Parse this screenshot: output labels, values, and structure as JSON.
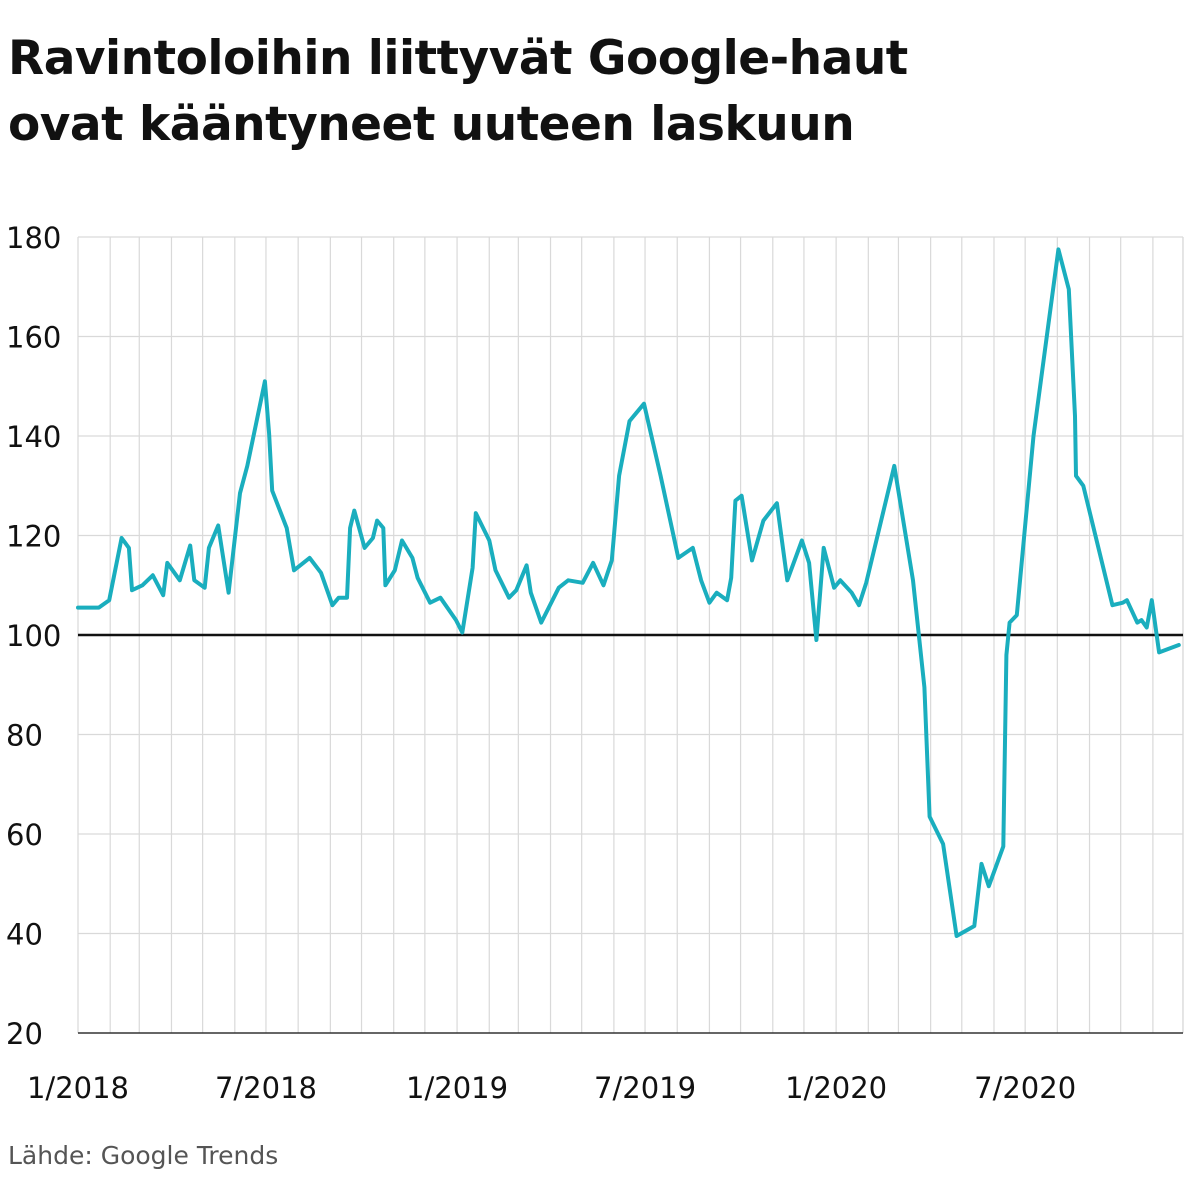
{
  "title_lines": [
    "Ravintoloihin liittyvät Google-haut",
    "ovat kääntyneet uuteen laskuun"
  ],
  "source": "Lähde: Google Trends",
  "colors": {
    "line": "#1aaebe",
    "reference": "#111111",
    "grid": "#d9d9d9",
    "text": "#111111"
  },
  "chart_data": {
    "type": "line",
    "title": "Ravintoloihin liittyvät Google-haut ovat kääntyneet uuteen laskuun",
    "xlabel": "",
    "ylabel": "",
    "ylim": [
      20,
      180
    ],
    "yticks": [
      20,
      40,
      60,
      80,
      100,
      120,
      140,
      160,
      180
    ],
    "xlim": [
      "2018-01-01",
      "2020-11-30"
    ],
    "xtick_labels": [
      {
        "date": "2018-01-01",
        "label": "1/2018"
      },
      {
        "date": "2018-07-01",
        "label": "7/2018"
      },
      {
        "date": "2019-01-01",
        "label": "1/2019"
      },
      {
        "date": "2019-07-01",
        "label": "7/2019"
      },
      {
        "date": "2020-01-01",
        "label": "1/2020"
      },
      {
        "date": "2020-07-01",
        "label": "7/2020"
      }
    ],
    "grid": "vertical lines at each month, horizontal lines at each y tick",
    "reference_line": 100,
    "series": [
      {
        "points": [
          [
            "2018-01-01",
            105.5
          ],
          [
            "2018-01-21",
            105.5
          ],
          [
            "2018-01-31",
            107
          ],
          [
            "2018-02-12",
            119.5
          ],
          [
            "2018-02-19",
            117.5
          ],
          [
            "2018-02-22",
            109
          ],
          [
            "2018-03-04",
            110
          ],
          [
            "2018-03-14",
            112
          ],
          [
            "2018-03-24",
            108
          ],
          [
            "2018-03-28",
            114.5
          ],
          [
            "2018-04-09",
            111
          ],
          [
            "2018-04-19",
            118
          ],
          [
            "2018-04-23",
            111
          ],
          [
            "2018-05-03",
            109.5
          ],
          [
            "2018-05-07",
            117.5
          ],
          [
            "2018-05-16",
            122
          ],
          [
            "2018-05-26",
            108.5
          ],
          [
            "2018-06-06",
            128.5
          ],
          [
            "2018-06-13",
            134
          ],
          [
            "2018-06-30",
            151
          ],
          [
            "2018-07-04",
            140.5
          ],
          [
            "2018-07-07",
            129
          ],
          [
            "2018-07-21",
            121.5
          ],
          [
            "2018-07-28",
            113
          ],
          [
            "2018-08-12",
            115.5
          ],
          [
            "2018-08-23",
            112.5
          ],
          [
            "2018-09-03",
            106
          ],
          [
            "2018-09-09",
            107.5
          ],
          [
            "2018-09-17",
            107.5
          ],
          [
            "2018-09-20",
            121.5
          ],
          [
            "2018-09-24",
            125
          ],
          [
            "2018-10-04",
            117.5
          ],
          [
            "2018-10-12",
            119.5
          ],
          [
            "2018-10-16",
            123
          ],
          [
            "2018-10-22",
            121.5
          ],
          [
            "2018-10-24",
            110
          ],
          [
            "2018-11-02",
            113
          ],
          [
            "2018-11-09",
            119
          ],
          [
            "2018-11-19",
            115.5
          ],
          [
            "2018-11-24",
            111.5
          ],
          [
            "2018-12-06",
            106.5
          ],
          [
            "2018-12-16",
            107.5
          ],
          [
            "2018-12-31",
            103
          ],
          [
            "2019-01-06",
            100.5
          ],
          [
            "2019-01-16",
            113.5
          ],
          [
            "2019-01-19",
            124.5
          ],
          [
            "2019-02-01",
            119
          ],
          [
            "2019-02-07",
            113
          ],
          [
            "2019-02-20",
            107.5
          ],
          [
            "2019-02-27",
            109
          ],
          [
            "2019-03-09",
            114
          ],
          [
            "2019-03-13",
            108.5
          ],
          [
            "2019-03-23",
            102.5
          ],
          [
            "2019-04-09",
            109.5
          ],
          [
            "2019-04-18",
            111
          ],
          [
            "2019-05-02",
            110.5
          ],
          [
            "2019-05-12",
            114.5
          ],
          [
            "2019-05-22",
            110
          ],
          [
            "2019-05-30",
            115
          ],
          [
            "2019-06-06",
            132
          ],
          [
            "2019-06-16",
            143
          ],
          [
            "2019-06-30",
            146.5
          ],
          [
            "2019-07-16",
            132
          ],
          [
            "2019-08-02",
            115.5
          ],
          [
            "2019-08-16",
            117.5
          ],
          [
            "2019-08-24",
            111
          ],
          [
            "2019-09-01",
            106.5
          ],
          [
            "2019-09-08",
            108.5
          ],
          [
            "2019-09-18",
            107
          ],
          [
            "2019-09-22",
            111.5
          ],
          [
            "2019-09-26",
            127
          ],
          [
            "2019-10-02",
            128
          ],
          [
            "2019-10-12",
            115
          ],
          [
            "2019-10-23",
            123
          ],
          [
            "2019-11-05",
            126.5
          ],
          [
            "2019-11-15",
            111
          ],
          [
            "2019-11-29",
            119
          ],
          [
            "2019-12-06",
            114.5
          ],
          [
            "2019-12-13",
            99
          ],
          [
            "2019-12-20",
            117.5
          ],
          [
            "2019-12-30",
            109.5
          ],
          [
            "2020-01-05",
            111
          ],
          [
            "2020-01-16",
            108.5
          ],
          [
            "2020-01-23",
            106
          ],
          [
            "2020-01-30",
            110.5
          ],
          [
            "2020-02-26",
            134
          ],
          [
            "2020-03-15",
            111
          ],
          [
            "2020-03-26",
            89.5
          ],
          [
            "2020-03-31",
            63.5
          ],
          [
            "2020-04-13",
            58
          ],
          [
            "2020-04-26",
            39.5
          ],
          [
            "2020-05-13",
            41.5
          ],
          [
            "2020-05-20",
            54
          ],
          [
            "2020-05-27",
            49.5
          ],
          [
            "2020-06-10",
            57.5
          ],
          [
            "2020-06-13",
            96
          ],
          [
            "2020-06-16",
            102.5
          ],
          [
            "2020-06-23",
            104
          ],
          [
            "2020-07-09",
            140
          ],
          [
            "2020-08-02",
            177.5
          ],
          [
            "2020-08-12",
            169.5
          ],
          [
            "2020-08-18",
            144
          ],
          [
            "2020-08-19",
            132
          ],
          [
            "2020-08-26",
            130
          ],
          [
            "2020-09-23",
            106
          ],
          [
            "2020-10-03",
            106.5
          ],
          [
            "2020-10-07",
            107
          ],
          [
            "2020-10-17",
            102.5
          ],
          [
            "2020-10-21",
            103
          ],
          [
            "2020-10-26",
            101.5
          ],
          [
            "2020-10-31",
            107
          ],
          [
            "2020-11-07",
            96.5
          ],
          [
            "2020-11-26",
            98
          ]
        ]
      }
    ]
  }
}
